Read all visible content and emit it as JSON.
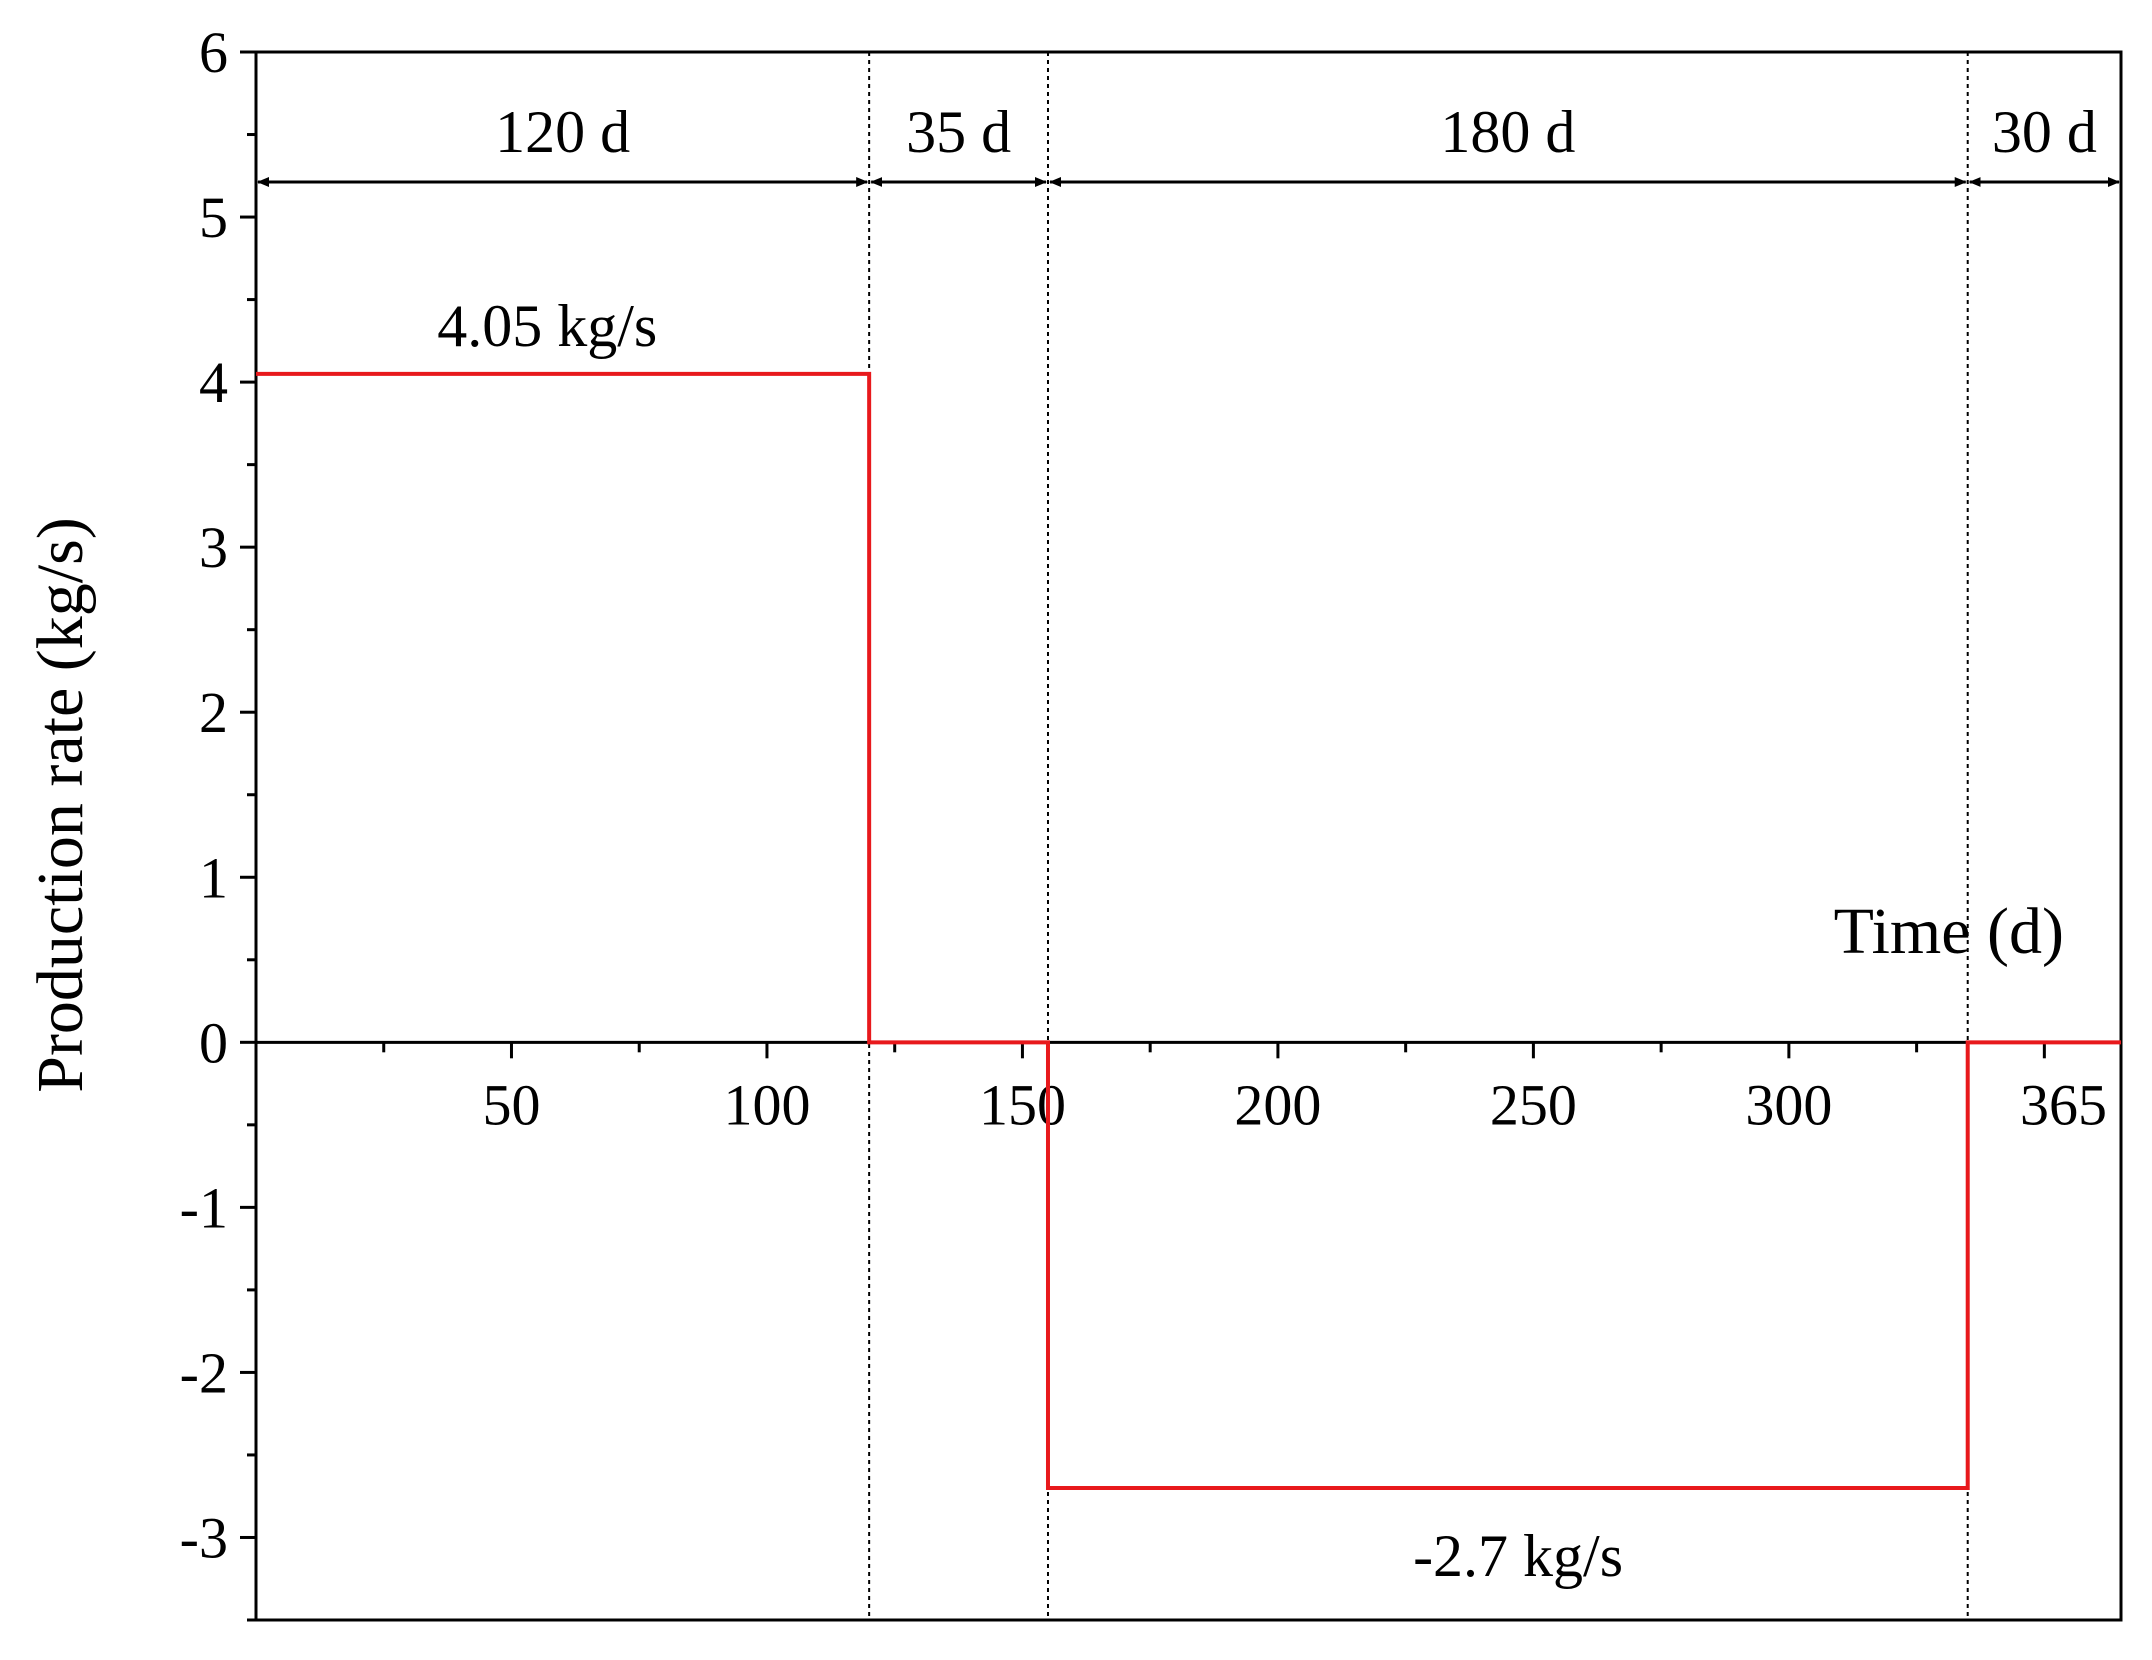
{
  "chart_data": {
    "type": "line",
    "ylabel": "Production rate (kg/s)",
    "xlabel": "Time (d)",
    "xlim": [
      0,
      365
    ],
    "ylim": [
      -3.5,
      6
    ],
    "y_ticks": [
      "-3",
      "-2",
      "-1",
      "0",
      "1",
      "2",
      "3",
      "4",
      "5",
      "6"
    ],
    "x_ticks": [
      {
        "value": 50,
        "label": "50"
      },
      {
        "value": 100,
        "label": "100"
      },
      {
        "value": 150,
        "label": "150"
      },
      {
        "value": 200,
        "label": "200"
      },
      {
        "value": 250,
        "label": "250"
      },
      {
        "value": 300,
        "label": "300"
      },
      {
        "value": 365,
        "label": "365"
      }
    ],
    "series": [
      {
        "color": "#e8191c",
        "x": [
          0,
          120,
          120,
          155,
          155,
          335,
          335,
          365
        ],
        "y": [
          4.05,
          4.05,
          0,
          0,
          -2.7,
          -2.7,
          0,
          0
        ]
      }
    ],
    "phase_boundaries": [
      120,
      155,
      335
    ],
    "durations": [
      {
        "from": 0,
        "to": 120,
        "label": "120 d"
      },
      {
        "from": 120,
        "to": 155,
        "label": "35 d"
      },
      {
        "from": 155,
        "to": 335,
        "label": "180 d"
      },
      {
        "from": 335,
        "to": 365,
        "label": "30 d"
      }
    ],
    "rate_labels": [
      {
        "x": 57,
        "y": 4.05,
        "label": "4.05 kg/s"
      },
      {
        "x": 247,
        "y": -2.7,
        "label": "-2.7 kg/s"
      }
    ]
  }
}
